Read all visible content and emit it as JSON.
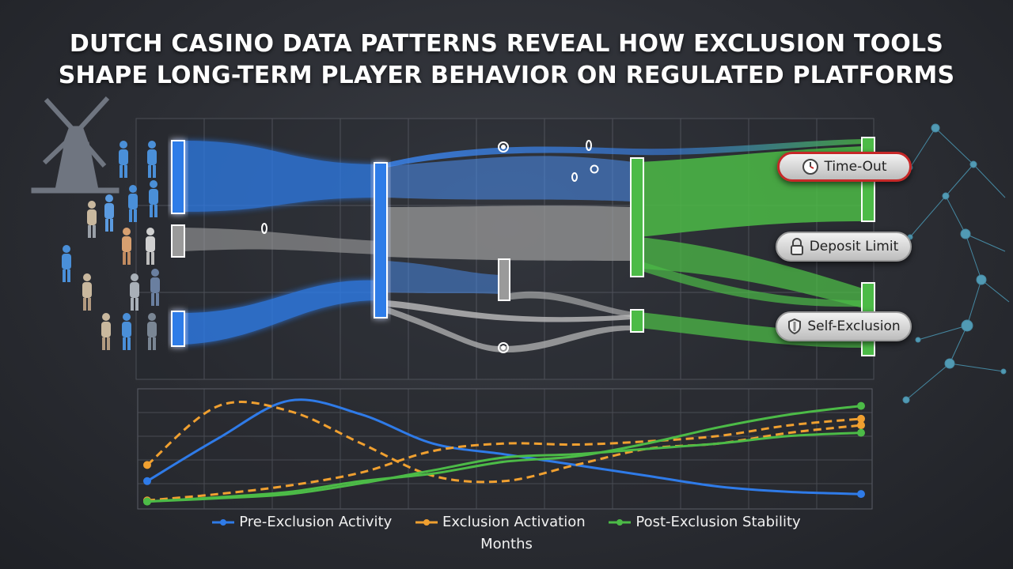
{
  "title": {
    "line1": "DUTCH CASINO DATA PATTERNS REVEAL HOW EXCLUSION TOOLS",
    "line2": "SHAPE LONG-TERM PLAYER BEHAVIOR ON REGULATED PLATFORMS"
  },
  "tools": {
    "time_out": "Time-Out",
    "deposit_limit": "Deposit Limit",
    "self_exclusion": "Self-Exclusion"
  },
  "colors": {
    "pre": "#2f7be8",
    "exclusion": "#f0a030",
    "post": "#4cbb47",
    "neutral": "#9a9a9a",
    "alert": "#c62828"
  },
  "icons": [
    "windmill-icon",
    "person-icon",
    "clock-icon",
    "lock-icon",
    "shield-icon",
    "network-icon"
  ],
  "chart_data": {
    "type": "line",
    "xlabel": "Months",
    "ylabel": "",
    "grid": true,
    "legend_position": "bottom",
    "x": [
      0,
      1,
      2,
      3,
      4,
      5,
      6,
      7,
      8,
      9,
      10
    ],
    "xlim": [
      0,
      10
    ],
    "ylim": [
      0,
      1
    ],
    "series": [
      {
        "name": "Pre-Exclusion Activity",
        "color": "#2f7be8",
        "style": "solid",
        "values": [
          0.2,
          0.6,
          0.95,
          0.82,
          0.55,
          0.45,
          0.35,
          0.25,
          0.15,
          0.1,
          0.08
        ]
      },
      {
        "name": "Exclusion Activation",
        "color": "#f0a030",
        "style": "dashed",
        "values": [
          0.35,
          0.9,
          0.85,
          0.55,
          0.25,
          0.2,
          0.35,
          0.5,
          0.55,
          0.65,
          0.72
        ]
      },
      {
        "name": "Exclusion Activation",
        "color": "#f0a030",
        "style": "dashed",
        "values": [
          0.02,
          0.08,
          0.16,
          0.28,
          0.48,
          0.55,
          0.54,
          0.57,
          0.62,
          0.72,
          0.78
        ]
      },
      {
        "name": "Post-Exclusion Stability",
        "color": "#4cbb47",
        "style": "solid",
        "values": [
          0.01,
          0.05,
          0.1,
          0.2,
          0.27,
          0.38,
          0.43,
          0.55,
          0.7,
          0.82,
          0.9
        ]
      },
      {
        "name": "Post-Exclusion Stability",
        "color": "#4cbb47",
        "style": "solid",
        "values": [
          0.01,
          0.04,
          0.08,
          0.18,
          0.3,
          0.42,
          0.45,
          0.5,
          0.55,
          0.62,
          0.65
        ]
      }
    ],
    "legend": [
      "Pre-Exclusion Activity",
      "Exclusion Activation",
      "Post-Exclusion Stability"
    ]
  }
}
